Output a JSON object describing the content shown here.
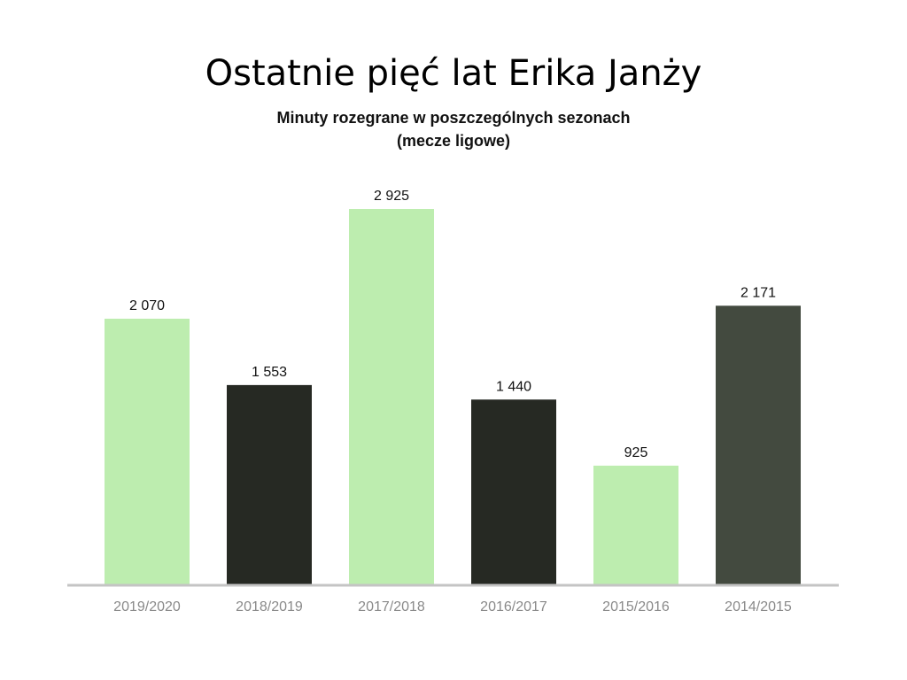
{
  "chart_data": {
    "type": "bar",
    "title": "Ostatnie pięć lat Erika Janży",
    "subtitle_line1": "Minuty rozegrane w poszczególnych sezonach",
    "subtitle_line2": "(mecze ligowe)",
    "categories": [
      "2019/2020",
      "2018/2019",
      "2017/2018",
      "2016/2017",
      "2015/2016",
      "2014/2015"
    ],
    "values": [
      2070,
      1553,
      2925,
      1440,
      925,
      2171
    ],
    "value_labels": [
      "2 070",
      "1 553",
      "2 925",
      "1 440",
      "925",
      "2 171"
    ],
    "bar_colors": [
      "#bdedaf",
      "#262923",
      "#bdedaf",
      "#262923",
      "#bdedaf",
      "#434a3f"
    ],
    "axis_color": "#c4c4c4",
    "tick_label_color": "#8a8a8a",
    "value_label_color": "#111111",
    "ylim": [
      0,
      2925
    ],
    "grid": false
  }
}
